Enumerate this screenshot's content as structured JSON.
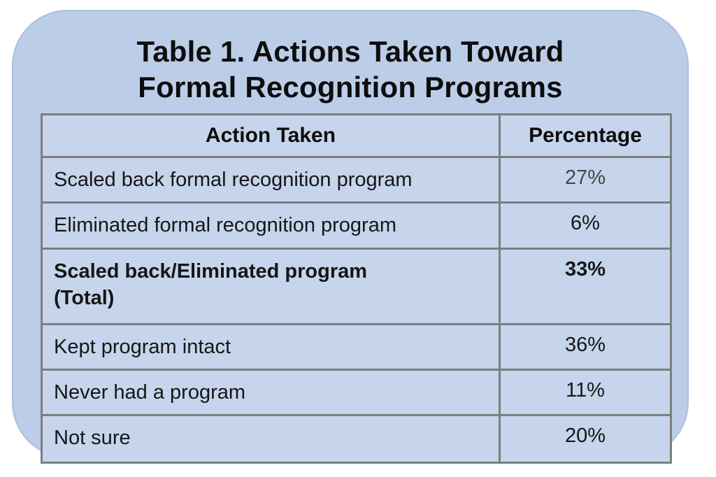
{
  "title": {
    "line1": "Table 1. Actions Taken Toward",
    "line2": "Formal Recognition Programs"
  },
  "table": {
    "headers": [
      "Action Taken",
      "Percentage"
    ],
    "rows": [
      {
        "action": "Scaled back formal recognition program",
        "percentage": "27%"
      },
      {
        "action": "Eliminated formal recognition program",
        "percentage": "6%"
      },
      {
        "action": "Scaled back/Eliminated program",
        "action_line2": "(Total)",
        "percentage": "33%",
        "bold": true
      },
      {
        "action": "Kept program intact",
        "percentage": "36%"
      },
      {
        "action": "Never had a program",
        "percentage": "11%"
      },
      {
        "action": "Not sure",
        "percentage": "20%"
      }
    ]
  },
  "colors": {
    "page_bg": "#ffffff",
    "card_bg": "#bccee7",
    "card_edge": "#aabfdc",
    "cell_bg": "#c6d5ec",
    "grid_border": "#7d7d80",
    "text": "#0d0d0d",
    "muted_value": "#474747"
  },
  "chart_data": {
    "type": "table",
    "title": "Table 1. Actions Taken Toward Formal Recognition Programs",
    "columns": [
      "Action Taken",
      "Percentage"
    ],
    "rows": [
      [
        "Scaled back formal recognition program",
        "27%"
      ],
      [
        "Eliminated formal recognition program",
        "6%"
      ],
      [
        "Scaled back/Eliminated program (Total)",
        "33%"
      ],
      [
        "Kept program intact",
        "36%"
      ],
      [
        "Never had a program",
        "11%"
      ],
      [
        "Not sure",
        "20%"
      ]
    ],
    "categories": [
      "Scaled back formal recognition program",
      "Eliminated formal recognition program",
      "Scaled back/Eliminated program (Total)",
      "Kept program intact",
      "Never had a program",
      "Not sure"
    ],
    "values": [
      27,
      6,
      33,
      36,
      11,
      20
    ],
    "value_unit": "percent",
    "emphasized_row": "Scaled back/Eliminated program (Total)"
  }
}
